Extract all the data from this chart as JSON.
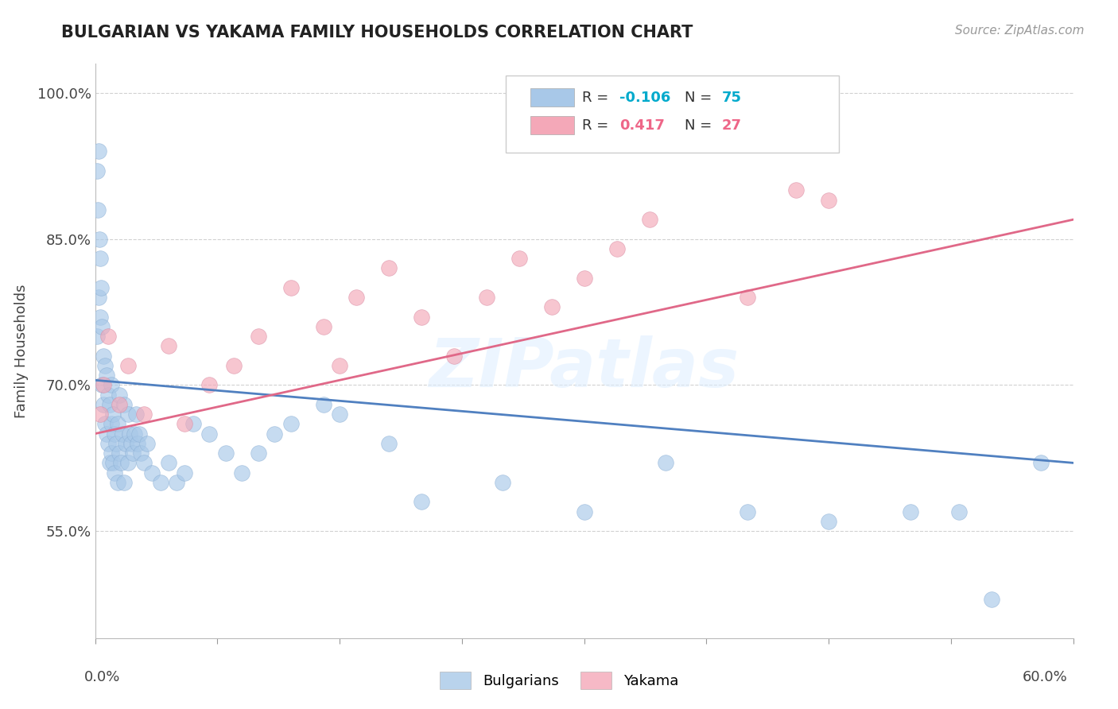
{
  "title": "BULGARIAN VS YAKAMA FAMILY HOUSEHOLDS CORRELATION CHART",
  "source": "Source: ZipAtlas.com",
  "ylabel": "Family Households",
  "xlim": [
    0.0,
    60.0
  ],
  "ylim": [
    44.0,
    103.0
  ],
  "yticks": [
    55.0,
    70.0,
    85.0,
    100.0
  ],
  "ytick_labels": [
    "55.0%",
    "70.0%",
    "85.0%",
    "100.0%"
  ],
  "bulgarian_R": -0.106,
  "bulgarian_N": 75,
  "yakama_R": 0.417,
  "yakama_N": 27,
  "blue_color": "#a8c8e8",
  "pink_color": "#f4a8b8",
  "blue_line_color": "#5080c0",
  "pink_line_color": "#e06888",
  "legend_labels": [
    "Bulgarians",
    "Yakama"
  ],
  "bulg_line_x0": 0,
  "bulg_line_y0": 70.5,
  "bulg_line_x1": 60,
  "bulg_line_y1": 62.0,
  "yak_line_x0": 0,
  "yak_line_y0": 65.0,
  "yak_line_x1": 60,
  "yak_line_y1": 87.0
}
